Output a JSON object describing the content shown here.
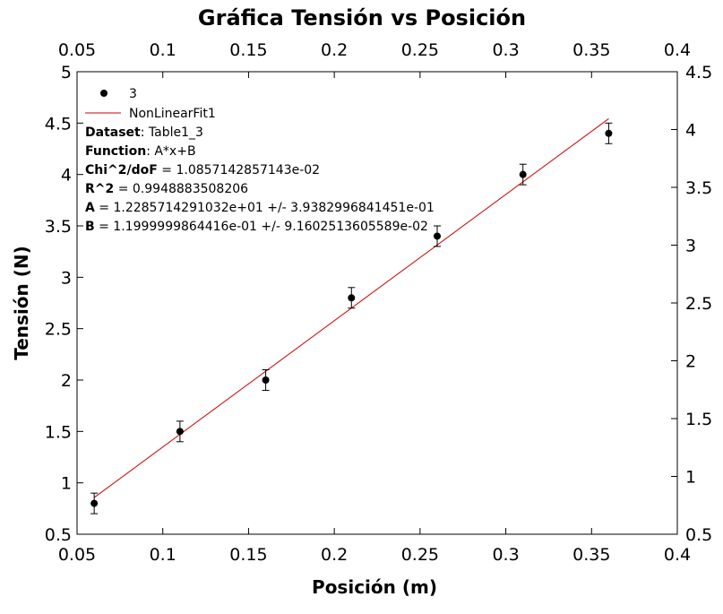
{
  "chart_data": {
    "type": "scatter",
    "title": "Gráfica Tensión vs Posición",
    "xlabel": "Posición (m)",
    "ylabel": "Tensión (N)",
    "xlim": [
      0.05,
      0.4
    ],
    "ylim": [
      0.5,
      5
    ],
    "right_ylim": [
      0.5,
      4.5
    ],
    "x_ticks": [
      "0.05",
      "0.1",
      "0.15",
      "0.2",
      "0.25",
      "0.3",
      "0.35",
      "0.4"
    ],
    "x_tick_values": [
      0.05,
      0.1,
      0.15,
      0.2,
      0.25,
      0.3,
      0.35,
      0.4
    ],
    "y_ticks": [
      "0.5",
      "1",
      "1.5",
      "2",
      "2.5",
      "3",
      "3.5",
      "4",
      "4.5",
      "5"
    ],
    "y_tick_values": [
      0.5,
      1,
      1.5,
      2,
      2.5,
      3,
      3.5,
      4,
      4.5,
      5
    ],
    "right_y_ticks": [
      "0.5",
      "1",
      "1.5",
      "2",
      "2.5",
      "3",
      "3.5",
      "4",
      "4.5"
    ],
    "right_y_tick_values": [
      0.5,
      1,
      1.5,
      2,
      2.5,
      3,
      3.5,
      4,
      4.5
    ],
    "grid": false,
    "legend_position": "top-left",
    "series": [
      {
        "name": "3",
        "kind": "scatter",
        "color": "#000000",
        "x": [
          0.06,
          0.11,
          0.16,
          0.21,
          0.26,
          0.31,
          0.36
        ],
        "y": [
          0.8,
          1.5,
          2.0,
          2.8,
          3.4,
          4.0,
          4.4
        ],
        "yerr": [
          0.1,
          0.1,
          0.1,
          0.1,
          0.1,
          0.1,
          0.1
        ]
      },
      {
        "name": "NonLinearFit1",
        "kind": "line",
        "color": "#cc0000",
        "x": [
          0.06,
          0.36
        ],
        "y": [
          0.8571428575,
          4.5428571448
        ]
      }
    ],
    "fit_info": [
      {
        "label": "Dataset",
        "value": ": Table1_3"
      },
      {
        "label": "Function",
        "value": ": A*x+B"
      },
      {
        "label": "Chi^2/doF",
        "value": " = 1.0857142857143e-02"
      },
      {
        "label": "R^2",
        "value": " = 0.9948883508206"
      },
      {
        "label": "A",
        "value": " = 1.2285714291032e+01 +/- 3.9382996841451e-01"
      },
      {
        "label": "B",
        "value": " = 1.1999999864416e-01 +/- 9.1602513605589e-02"
      }
    ]
  }
}
